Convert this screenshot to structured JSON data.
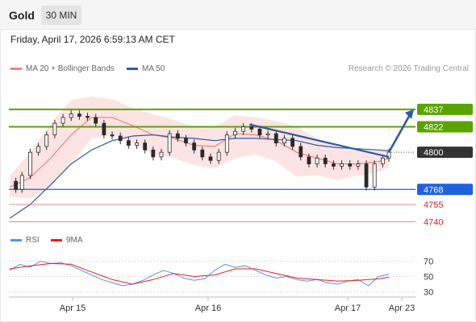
{
  "header": {
    "asset": "Gold",
    "timeframe": "30 MIN"
  },
  "datetime": "Friday, April 17, 2026 6:59:13 AM CET",
  "legend": {
    "ma20": "MA 20 + Bollinger Bands",
    "ma50": "MA 50",
    "credit": "Research © 2026 Trading Central"
  },
  "rsi_legend": {
    "rsi": "RSI",
    "ma9": "9MA"
  },
  "colors": {
    "resistance": "#5aa300",
    "support": "#1f5fe0",
    "weak_level": "#e06060",
    "ma20": "#f08080",
    "ma50": "#2f5a9e",
    "rsi": "#5b8def",
    "ma9": "#e02020",
    "last_price": "#333333",
    "candle_body": "#2a2a2a"
  },
  "chart_data": [
    {
      "type": "line",
      "title": "Gold 30 MIN",
      "x_labels": [
        "Apr 15",
        "Apr 16",
        "Apr 17",
        "Apr 23"
      ],
      "ylim": [
        4730,
        4848
      ],
      "levels": [
        {
          "label": "4837",
          "value": 4837,
          "kind": "resistance"
        },
        {
          "label": "4822",
          "value": 4822,
          "kind": "resistance"
        },
        {
          "label": "4800",
          "value": 4800,
          "kind": "last"
        },
        {
          "label": "4768",
          "value": 4768,
          "kind": "support"
        },
        {
          "label": "4755",
          "value": 4755,
          "kind": "weak"
        },
        {
          "label": "4740",
          "value": 4740,
          "kind": "weak"
        }
      ],
      "series": [
        {
          "name": "MA 20 + Bollinger Bands",
          "x": [
            0,
            10,
            20,
            30,
            40,
            50,
            60,
            70,
            80,
            90,
            100,
            110,
            120,
            130,
            140,
            150,
            160,
            170,
            180,
            185
          ],
          "mid": [
            4770,
            4778,
            4795,
            4815,
            4830,
            4830,
            4823,
            4815,
            4812,
            4806,
            4805,
            4816,
            4815,
            4810,
            4800,
            4795,
            4790,
            4790,
            4792,
            4795
          ],
          "upper": [
            4780,
            4800,
            4825,
            4845,
            4848,
            4846,
            4838,
            4833,
            4828,
            4822,
            4822,
            4832,
            4830,
            4827,
            4822,
            4812,
            4805,
            4802,
            4802,
            4803
          ],
          "lower": [
            4762,
            4760,
            4770,
            4790,
            4812,
            4815,
            4808,
            4798,
            4795,
            4789,
            4786,
            4795,
            4798,
            4792,
            4779,
            4780,
            4776,
            4780,
            4783,
            4787
          ]
        },
        {
          "name": "MA 50",
          "x": [
            0,
            10,
            20,
            30,
            40,
            50,
            60,
            70,
            80,
            90,
            100,
            110,
            120,
            130,
            140,
            150,
            160,
            170,
            180,
            185
          ],
          "values": [
            4743,
            4755,
            4772,
            4790,
            4802,
            4810,
            4814,
            4815,
            4813,
            4812,
            4810,
            4812,
            4812,
            4811,
            4810,
            4806,
            4804,
            4803,
            4802,
            4801
          ]
        },
        {
          "name": "Price",
          "x": [
            0,
            3,
            6,
            10,
            14,
            18,
            22,
            26,
            30,
            34,
            38,
            42,
            46,
            50,
            54,
            58,
            62,
            66,
            70,
            74,
            78,
            82,
            86,
            90,
            94,
            98,
            102,
            106,
            110,
            114,
            118,
            122,
            126,
            130,
            134,
            138,
            142,
            146,
            150,
            154,
            158,
            162,
            166,
            170,
            174,
            178,
            182,
            185
          ],
          "values": [
            4775,
            4768,
            4780,
            4800,
            4805,
            4815,
            4825,
            4830,
            4833,
            4831,
            4830,
            4825,
            4815,
            4814,
            4810,
            4806,
            4808,
            4802,
            4796,
            4800,
            4816,
            4812,
            4808,
            4802,
            4796,
            4793,
            4800,
            4815,
            4818,
            4822,
            4820,
            4815,
            4816,
            4808,
            4812,
            4805,
            4796,
            4790,
            4795,
            4790,
            4788,
            4790,
            4788,
            4790,
            4770,
            4790,
            4795,
            4800
          ]
        }
      ]
    },
    {
      "type": "line",
      "title": "RSI",
      "x_labels": [
        "Apr 15",
        "Apr 16",
        "Apr 17",
        "Apr 23"
      ],
      "ylim": [
        20,
        80
      ],
      "y_ticks": [
        "70",
        "50",
        "30"
      ],
      "series": [
        {
          "name": "RSI",
          "x": [
            0,
            5,
            10,
            15,
            20,
            25,
            30,
            35,
            40,
            45,
            50,
            55,
            60,
            65,
            70,
            75,
            80,
            85,
            90,
            95,
            100,
            105,
            110,
            115,
            120,
            125,
            130,
            135,
            140,
            145,
            150,
            155,
            160,
            165,
            170,
            175,
            180,
            185
          ],
          "values": [
            58,
            66,
            62,
            70,
            67,
            68,
            64,
            58,
            52,
            46,
            42,
            38,
            40,
            45,
            52,
            58,
            54,
            48,
            45,
            47,
            58,
            66,
            62,
            64,
            58,
            52,
            48,
            50,
            46,
            44,
            46,
            42,
            40,
            44,
            46,
            38,
            50,
            53
          ]
        },
        {
          "name": "9MA",
          "x": [
            0,
            10,
            20,
            30,
            40,
            50,
            60,
            70,
            80,
            90,
            100,
            110,
            120,
            130,
            140,
            150,
            160,
            170,
            180,
            185
          ],
          "values": [
            60,
            64,
            67,
            66,
            56,
            46,
            40,
            46,
            54,
            50,
            52,
            60,
            60,
            54,
            48,
            46,
            44,
            45,
            47,
            49
          ]
        }
      ]
    }
  ]
}
